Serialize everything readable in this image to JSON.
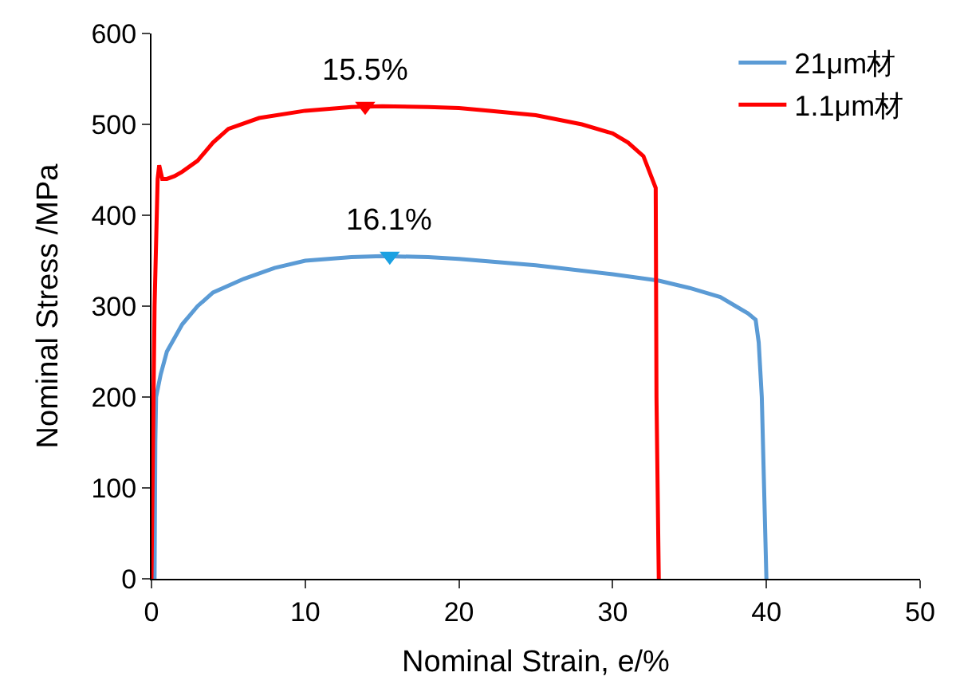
{
  "chart_data": {
    "type": "line",
    "xlabel": "Nominal Strain, e/%",
    "ylabel": "Nominal Stress /MPa",
    "xlim": [
      0,
      50
    ],
    "xticks": [
      0,
      10,
      20,
      30,
      40,
      50
    ],
    "ylim": [
      0,
      600
    ],
    "yticks": [
      0,
      100,
      200,
      300,
      400,
      500,
      600
    ],
    "legend": "top right",
    "marker": "none",
    "line_style": "solid",
    "series": [
      {
        "name": "21μm材",
        "color": "#5b9bd5",
        "x": [
          0.2,
          0.25,
          0.3,
          0.6,
          1,
          2,
          3,
          4,
          6,
          8,
          10,
          13,
          15,
          18,
          20,
          25,
          30,
          33,
          35,
          37,
          38,
          38.8,
          39.3,
          39.5,
          39.7,
          39.85,
          40
        ],
        "values": [
          0,
          150,
          200,
          225,
          250,
          280,
          300,
          315,
          330,
          342,
          350,
          354,
          355,
          354,
          352,
          345,
          335,
          328,
          320,
          310,
          300,
          292,
          285,
          260,
          200,
          100,
          0
        ]
      },
      {
        "name": "1.1μm材",
        "color": "#ff0000",
        "x": [
          0,
          0.2,
          0.4,
          0.5,
          0.7,
          1,
          1.5,
          2,
          3,
          4,
          5,
          7,
          10,
          13,
          15,
          18,
          20,
          22,
          25,
          28,
          30,
          31,
          32,
          32.8,
          32.85,
          33
        ],
        "values": [
          0,
          300,
          440,
          455,
          440,
          440,
          443,
          448,
          460,
          480,
          495,
          507,
          515,
          519,
          520,
          519,
          518,
          515,
          510,
          500,
          490,
          480,
          465,
          430,
          200,
          0
        ]
      },
      {
        "type": "scatter",
        "marker": "triangle",
        "color": "#ff0000",
        "x": [
          13.9
        ],
        "values": [
          520
        ]
      },
      {
        "type": "scatter",
        "marker": "triangle",
        "color": "#1ba1e2",
        "x": [
          15.5
        ],
        "values": [
          355
        ]
      }
    ],
    "annotations": [
      {
        "text": "15.5%",
        "x": 13.9,
        "y": 520
      },
      {
        "text": "16.1%",
        "x": 15.5,
        "y": 355
      }
    ]
  }
}
